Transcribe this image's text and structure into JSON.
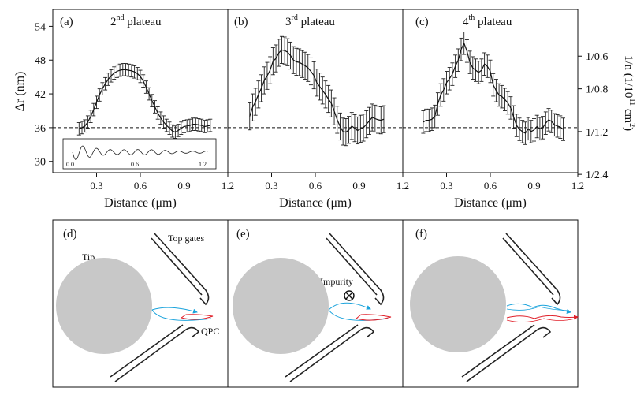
{
  "chart_data": {
    "type": "line",
    "ylabel": "Δr (nm)",
    "ylabel_right": "1/n (1/10",
    "ylabel_right_exp": "11",
    "ylabel_right_unit": " cm",
    "ylabel_right_unit_exp": "2",
    "ylabel_right_close": ")",
    "xlabel": "Distance (μm)",
    "ylim": [
      28,
      57
    ],
    "xlim": [
      0,
      1.2
    ],
    "y_ticks": [
      30,
      36,
      42,
      48,
      54
    ],
    "x_ticks": [
      "0.3",
      "0.6",
      "0.9",
      "1.2"
    ],
    "right_ticks": [
      {
        "label": "1/0.6",
        "y": 48.7
      },
      {
        "label": "1/0.8",
        "y": 42.9
      },
      {
        "label": "1/1.2",
        "y": 35.3
      },
      {
        "label": "1/2.4",
        "y": 27.7
      }
    ],
    "reference_line_y": 36,
    "panels": [
      {
        "tag": "(a)",
        "title_pre": "2",
        "title_sup": "nd",
        "title_post": " plateau",
        "x": [
          0.18,
          0.2,
          0.22,
          0.24,
          0.26,
          0.28,
          0.3,
          0.32,
          0.34,
          0.36,
          0.38,
          0.4,
          0.42,
          0.44,
          0.46,
          0.48,
          0.5,
          0.52,
          0.54,
          0.56,
          0.58,
          0.6,
          0.62,
          0.64,
          0.66,
          0.68,
          0.7,
          0.72,
          0.74,
          0.76,
          0.78,
          0.8,
          0.82,
          0.84,
          0.86,
          0.88,
          0.9,
          0.92,
          0.94,
          0.96,
          0.98,
          1.0,
          1.02,
          1.04,
          1.06,
          1.08
        ],
        "y": [
          35.8,
          36.0,
          36.3,
          37.0,
          38.0,
          39.2,
          40.5,
          41.8,
          42.9,
          43.8,
          44.6,
          45.2,
          45.7,
          46.0,
          46.2,
          46.3,
          46.3,
          46.2,
          46.1,
          45.9,
          45.6,
          45.1,
          44.3,
          43.2,
          42.0,
          40.8,
          39.7,
          38.6,
          37.7,
          37.0,
          36.4,
          35.9,
          35.4,
          35.2,
          35.5,
          35.9,
          36.2,
          36.3,
          36.4,
          36.6,
          36.6,
          36.5,
          36.4,
          36.2,
          36.3,
          36.4
        ],
        "err": 1.1
      },
      {
        "tag": "(b)",
        "title_pre": "3",
        "title_sup": "rd",
        "title_post": " plateau",
        "x": [
          0.15,
          0.17,
          0.19,
          0.21,
          0.23,
          0.25,
          0.27,
          0.29,
          0.31,
          0.33,
          0.35,
          0.37,
          0.39,
          0.41,
          0.43,
          0.45,
          0.47,
          0.49,
          0.51,
          0.53,
          0.55,
          0.57,
          0.59,
          0.61,
          0.63,
          0.65,
          0.67,
          0.69,
          0.71,
          0.73,
          0.75,
          0.77,
          0.79,
          0.81,
          0.83,
          0.85,
          0.87,
          0.89,
          0.91,
          0.93,
          0.95,
          0.97,
          0.99,
          1.01,
          1.03,
          1.05,
          1.07
        ],
        "y": [
          38.0,
          39.6,
          40.6,
          41.9,
          43.0,
          44.4,
          45.2,
          46.2,
          47.8,
          48.3,
          49.3,
          49.8,
          49.7,
          49.4,
          48.8,
          48.0,
          47.7,
          47.6,
          47.3,
          47.0,
          46.6,
          46.0,
          45.3,
          44.0,
          43.3,
          42.6,
          41.9,
          41.1,
          40.3,
          38.9,
          37.4,
          36.2,
          35.3,
          35.2,
          35.6,
          36.3,
          35.9,
          35.5,
          35.8,
          36.0,
          36.6,
          37.2,
          37.8,
          37.6,
          37.4,
          37.3,
          37.5
        ],
        "err": 2.4
      },
      {
        "tag": "(c)",
        "title_pre": "4",
        "title_sup": "th",
        "title_post": " plateau",
        "x": [
          0.14,
          0.16,
          0.18,
          0.2,
          0.22,
          0.24,
          0.26,
          0.28,
          0.3,
          0.32,
          0.34,
          0.36,
          0.38,
          0.4,
          0.42,
          0.44,
          0.46,
          0.48,
          0.5,
          0.52,
          0.54,
          0.56,
          0.58,
          0.6,
          0.62,
          0.64,
          0.66,
          0.68,
          0.7,
          0.72,
          0.74,
          0.76,
          0.78,
          0.8,
          0.82,
          0.84,
          0.86,
          0.88,
          0.9,
          0.92,
          0.94,
          0.96,
          0.98,
          1.0,
          1.02,
          1.04,
          1.06,
          1.08,
          1.1
        ],
        "y": [
          37.0,
          37.3,
          37.3,
          37.5,
          38.0,
          40.2,
          41.8,
          42.7,
          44.0,
          44.7,
          45.5,
          46.9,
          48.0,
          49.9,
          51.0,
          49.6,
          47.6,
          46.6,
          46.2,
          45.8,
          46.2,
          47.3,
          46.9,
          46.0,
          43.6,
          42.6,
          41.8,
          41.5,
          41.0,
          40.4,
          39.5,
          37.9,
          36.4,
          35.7,
          35.3,
          35.0,
          35.8,
          35.3,
          35.6,
          36.2,
          35.8,
          36.0,
          36.8,
          37.4,
          37.1,
          36.5,
          36.3,
          36.1,
          35.7
        ],
        "err": 2.0
      }
    ],
    "inset": {
      "x_ticks": [
        "0.0",
        "0.6",
        "1.2"
      ]
    }
  },
  "diagrams": [
    {
      "tag": "(d)",
      "label_tip": "Tip",
      "label_gates": "Top gates",
      "label_qpc": "QPC"
    },
    {
      "tag": "(e)",
      "label_impurity": "Impurity"
    },
    {
      "tag": "(f)"
    }
  ],
  "colors": {
    "axes": "#111111",
    "tip": "#c8c8c8",
    "blue_path": "#1aa3dc",
    "red_path": "#e0202a"
  }
}
